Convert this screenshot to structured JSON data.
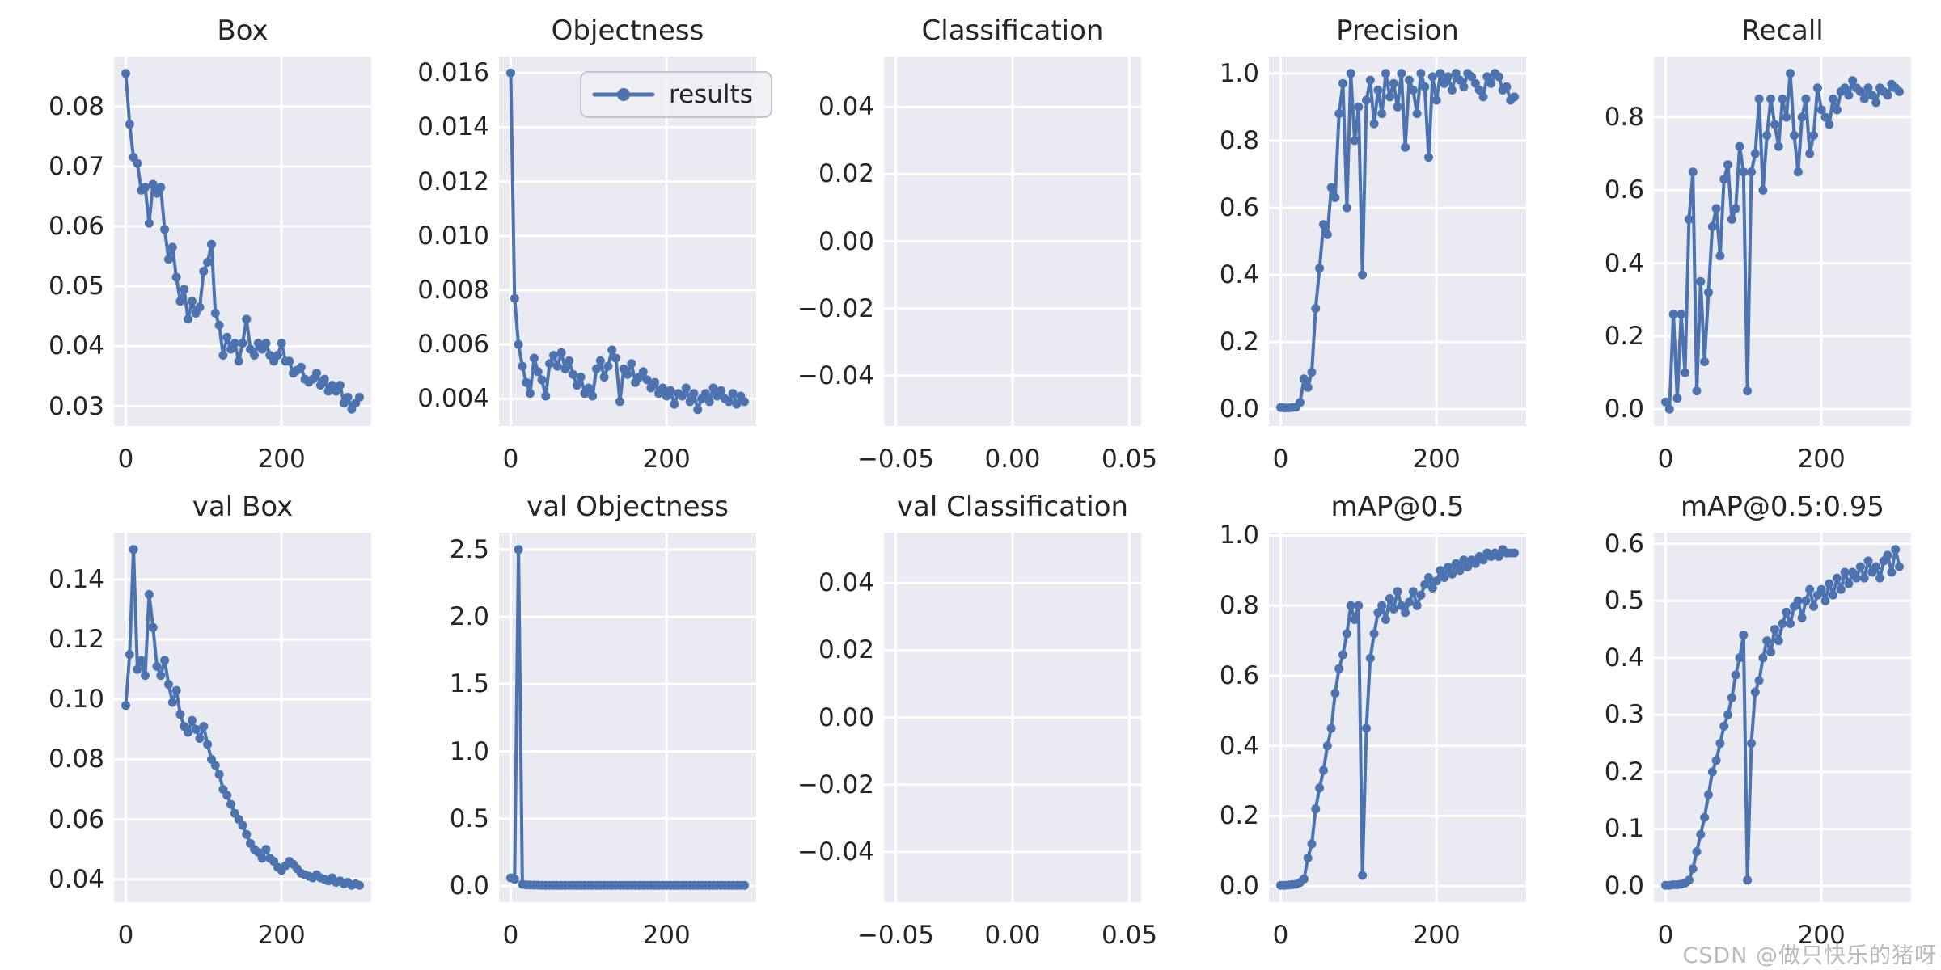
{
  "watermark": {
    "text": "CSDN @做只快乐的猪呀"
  },
  "colors": {
    "line": "#4C72B0",
    "axes_bg": "#EAEAF2",
    "grid": "#FFFFFF",
    "text": "#262626",
    "watermark": "#B9B9C2"
  },
  "legend": {
    "label": "results"
  },
  "chart_data": [
    {
      "id": "box",
      "type": "line",
      "title": "Box",
      "xlabel": "",
      "ylabel": "",
      "grid": true,
      "xlim": [
        -15,
        315
      ],
      "ylim": [
        0.0267,
        0.0883
      ],
      "xticks": [
        [
          0,
          "0"
        ],
        [
          200,
          "200"
        ]
      ],
      "yticks": [
        [
          0.03,
          "0.03"
        ],
        [
          0.04,
          "0.04"
        ],
        [
          0.05,
          "0.05"
        ],
        [
          0.06,
          "0.06"
        ],
        [
          0.07,
          "0.07"
        ],
        [
          0.08,
          "0.08"
        ]
      ],
      "x_step": 5,
      "y": [
        0.0855,
        0.077,
        0.0715,
        0.0705,
        0.066,
        0.0665,
        0.0605,
        0.067,
        0.0655,
        0.0665,
        0.0595,
        0.0545,
        0.0565,
        0.0515,
        0.0475,
        0.0495,
        0.0445,
        0.0475,
        0.0455,
        0.0465,
        0.0525,
        0.054,
        0.057,
        0.0455,
        0.0435,
        0.0385,
        0.0415,
        0.0395,
        0.0405,
        0.0375,
        0.0405,
        0.0445,
        0.0395,
        0.0385,
        0.0405,
        0.0395,
        0.0405,
        0.0385,
        0.0375,
        0.0385,
        0.0405,
        0.0375,
        0.0375,
        0.0355,
        0.036,
        0.0365,
        0.0345,
        0.034,
        0.0345,
        0.0355,
        0.0335,
        0.0345,
        0.0325,
        0.0335,
        0.0325,
        0.0335,
        0.0305,
        0.0315,
        0.0295,
        0.0305,
        0.0315
      ]
    },
    {
      "id": "objectness",
      "type": "line",
      "title": "Objectness",
      "xlabel": "",
      "ylabel": "",
      "grid": true,
      "legend": "results",
      "legend_pos": "upper right",
      "xlim": [
        -15,
        315
      ],
      "ylim": [
        0.003,
        0.0166
      ],
      "xticks": [
        [
          0,
          "0"
        ],
        [
          200,
          "200"
        ]
      ],
      "yticks": [
        [
          0.004,
          "0.004"
        ],
        [
          0.006,
          "0.006"
        ],
        [
          0.008,
          "0.008"
        ],
        [
          0.01,
          "0.010"
        ],
        [
          0.012,
          "0.012"
        ],
        [
          0.014,
          "0.014"
        ],
        [
          0.016,
          "0.016"
        ]
      ],
      "x_step": 5,
      "y": [
        0.016,
        0.0077,
        0.006,
        0.0052,
        0.0046,
        0.0042,
        0.0055,
        0.005,
        0.0047,
        0.0041,
        0.0053,
        0.0056,
        0.0052,
        0.0057,
        0.0051,
        0.0054,
        0.0049,
        0.0045,
        0.0048,
        0.0042,
        0.0044,
        0.0041,
        0.0051,
        0.0054,
        0.0048,
        0.0052,
        0.0058,
        0.0055,
        0.0039,
        0.0051,
        0.0049,
        0.0053,
        0.0046,
        0.0048,
        0.005,
        0.0047,
        0.0044,
        0.0046,
        0.0042,
        0.0044,
        0.0041,
        0.0043,
        0.0038,
        0.0042,
        0.0041,
        0.0044,
        0.0039,
        0.0042,
        0.0036,
        0.004,
        0.0042,
        0.0039,
        0.0044,
        0.0041,
        0.0043,
        0.004,
        0.0039,
        0.0042,
        0.0038,
        0.0041,
        0.0039
      ]
    },
    {
      "id": "classification",
      "type": "line",
      "title": "Classification",
      "xlabel": "",
      "ylabel": "",
      "grid": true,
      "xlim": [
        -0.055,
        0.055
      ],
      "ylim": [
        -0.055,
        0.055
      ],
      "xticks": [
        [
          -0.05,
          "−0.05"
        ],
        [
          0,
          "0.00"
        ],
        [
          0.05,
          "0.05"
        ]
      ],
      "yticks": [
        [
          -0.04,
          "−0.04"
        ],
        [
          -0.02,
          "−0.02"
        ],
        [
          0,
          "0.00"
        ],
        [
          0.02,
          "0.02"
        ],
        [
          0.04,
          "0.04"
        ]
      ],
      "x_step": 5,
      "y": []
    },
    {
      "id": "precision",
      "type": "line",
      "title": "Precision",
      "xlabel": "",
      "ylabel": "",
      "grid": true,
      "xlim": [
        -15,
        315
      ],
      "ylim": [
        -0.05,
        1.05
      ],
      "xticks": [
        [
          0,
          "0"
        ],
        [
          200,
          "200"
        ]
      ],
      "yticks": [
        [
          0,
          "0.0"
        ],
        [
          0.2,
          "0.2"
        ],
        [
          0.4,
          "0.4"
        ],
        [
          0.6,
          "0.6"
        ],
        [
          0.8,
          "0.8"
        ],
        [
          1.0,
          "1.0"
        ]
      ],
      "x_step": 5,
      "y": [
        0.005,
        0.004,
        0.004,
        0.005,
        0.006,
        0.02,
        0.09,
        0.065,
        0.11,
        0.3,
        0.42,
        0.55,
        0.52,
        0.66,
        0.63,
        0.88,
        0.97,
        0.6,
        1.0,
        0.8,
        0.9,
        0.4,
        0.92,
        0.98,
        0.85,
        0.95,
        0.88,
        1.0,
        0.93,
        0.97,
        0.9,
        1.0,
        0.78,
        0.98,
        0.95,
        0.88,
        1.0,
        0.96,
        0.75,
        0.99,
        0.92,
        1.0,
        0.97,
        0.99,
        0.95,
        1.0,
        0.98,
        0.96,
        1.0,
        0.99,
        0.97,
        0.95,
        0.93,
        0.99,
        0.97,
        1.0,
        0.99,
        0.95,
        0.96,
        0.92,
        0.93
      ]
    },
    {
      "id": "recall",
      "type": "line",
      "title": "Recall",
      "xlabel": "",
      "ylabel": "",
      "grid": true,
      "xlim": [
        -15,
        315
      ],
      "ylim": [
        -0.046,
        0.966
      ],
      "xticks": [
        [
          0,
          "0"
        ],
        [
          200,
          "200"
        ]
      ],
      "yticks": [
        [
          0,
          "0.0"
        ],
        [
          0.2,
          "0.2"
        ],
        [
          0.4,
          "0.4"
        ],
        [
          0.6,
          "0.6"
        ],
        [
          0.8,
          "0.8"
        ]
      ],
      "x_step": 5,
      "y": [
        0.02,
        0.0,
        0.26,
        0.03,
        0.26,
        0.1,
        0.52,
        0.65,
        0.05,
        0.35,
        0.13,
        0.32,
        0.5,
        0.55,
        0.42,
        0.63,
        0.67,
        0.52,
        0.55,
        0.72,
        0.65,
        0.05,
        0.65,
        0.7,
        0.85,
        0.6,
        0.75,
        0.85,
        0.78,
        0.72,
        0.85,
        0.8,
        0.92,
        0.75,
        0.65,
        0.8,
        0.85,
        0.7,
        0.75,
        0.88,
        0.82,
        0.8,
        0.78,
        0.85,
        0.82,
        0.87,
        0.88,
        0.86,
        0.9,
        0.88,
        0.87,
        0.85,
        0.88,
        0.86,
        0.84,
        0.88,
        0.87,
        0.86,
        0.89,
        0.88,
        0.87
      ]
    },
    {
      "id": "val-box",
      "type": "line",
      "title": "val Box",
      "xlabel": "",
      "ylabel": "",
      "grid": true,
      "xlim": [
        -15,
        315
      ],
      "ylim": [
        0.0324,
        0.1556
      ],
      "xticks": [
        [
          0,
          "0"
        ],
        [
          200,
          "200"
        ]
      ],
      "yticks": [
        [
          0.04,
          "0.04"
        ],
        [
          0.06,
          "0.06"
        ],
        [
          0.08,
          "0.08"
        ],
        [
          0.1,
          "0.10"
        ],
        [
          0.12,
          "0.12"
        ],
        [
          0.14,
          "0.14"
        ]
      ],
      "x_step": 5,
      "y": [
        0.098,
        0.115,
        0.15,
        0.11,
        0.113,
        0.108,
        0.135,
        0.124,
        0.111,
        0.108,
        0.113,
        0.105,
        0.099,
        0.103,
        0.095,
        0.091,
        0.089,
        0.093,
        0.09,
        0.087,
        0.091,
        0.085,
        0.08,
        0.078,
        0.075,
        0.07,
        0.068,
        0.065,
        0.062,
        0.06,
        0.058,
        0.055,
        0.052,
        0.05,
        0.049,
        0.047,
        0.05,
        0.047,
        0.046,
        0.044,
        0.043,
        0.0445,
        0.046,
        0.045,
        0.0435,
        0.042,
        0.0415,
        0.041,
        0.0405,
        0.0415,
        0.0405,
        0.04,
        0.0395,
        0.0405,
        0.039,
        0.0395,
        0.0385,
        0.039,
        0.038,
        0.0385,
        0.038
      ]
    },
    {
      "id": "val-objectness",
      "type": "line",
      "title": "val Objectness",
      "xlabel": "",
      "ylabel": "",
      "grid": true,
      "xlim": [
        -15,
        315
      ],
      "ylim": [
        -0.12,
        2.625
      ],
      "xticks": [
        [
          0,
          "0"
        ],
        [
          200,
          "200"
        ]
      ],
      "yticks": [
        [
          0,
          "0.0"
        ],
        [
          0.5,
          "0.5"
        ],
        [
          1.0,
          "1.0"
        ],
        [
          1.5,
          "1.5"
        ],
        [
          2.0,
          "2.0"
        ],
        [
          2.5,
          "2.5"
        ]
      ],
      "x_step": 5,
      "y": [
        0.06,
        0.05,
        2.5,
        0.012,
        0.008,
        0.007,
        0.006,
        0.006,
        0.005,
        0.005,
        0.005,
        0.005,
        0.005,
        0.005,
        0.005,
        0.005,
        0.005,
        0.005,
        0.005,
        0.005,
        0.005,
        0.005,
        0.005,
        0.005,
        0.005,
        0.005,
        0.005,
        0.005,
        0.005,
        0.005,
        0.005,
        0.005,
        0.005,
        0.005,
        0.005,
        0.005,
        0.005,
        0.005,
        0.005,
        0.005,
        0.005,
        0.005,
        0.005,
        0.005,
        0.005,
        0.005,
        0.005,
        0.005,
        0.005,
        0.005,
        0.005,
        0.005,
        0.005,
        0.005,
        0.005,
        0.005,
        0.005,
        0.005,
        0.005,
        0.005,
        0.005
      ]
    },
    {
      "id": "val-classification",
      "type": "line",
      "title": "val Classification",
      "xlabel": "",
      "ylabel": "",
      "grid": true,
      "xlim": [
        -0.055,
        0.055
      ],
      "ylim": [
        -0.055,
        0.055
      ],
      "xticks": [
        [
          -0.05,
          "−0.05"
        ],
        [
          0,
          "0.00"
        ],
        [
          0.05,
          "0.05"
        ]
      ],
      "yticks": [
        [
          -0.04,
          "−0.04"
        ],
        [
          -0.02,
          "−0.02"
        ],
        [
          0,
          "0.00"
        ],
        [
          0.02,
          "0.02"
        ],
        [
          0.04,
          "0.04"
        ]
      ],
      "x_step": 5,
      "y": []
    },
    {
      "id": "map05",
      "type": "line",
      "title": "mAP@0.5",
      "xlabel": "",
      "ylabel": "",
      "grid": true,
      "xlim": [
        -15,
        315
      ],
      "ylim": [
        -0.046,
        1.008
      ],
      "xticks": [
        [
          0,
          "0"
        ],
        [
          200,
          "200"
        ]
      ],
      "yticks": [
        [
          0,
          "0.0"
        ],
        [
          0.2,
          "0.2"
        ],
        [
          0.4,
          "0.4"
        ],
        [
          0.6,
          "0.6"
        ],
        [
          0.8,
          "0.8"
        ],
        [
          1.0,
          "1.0"
        ]
      ],
      "x_step": 5,
      "y": [
        0.002,
        0.002,
        0.003,
        0.004,
        0.005,
        0.01,
        0.02,
        0.08,
        0.12,
        0.22,
        0.28,
        0.33,
        0.4,
        0.45,
        0.55,
        0.62,
        0.66,
        0.72,
        0.8,
        0.76,
        0.8,
        0.03,
        0.45,
        0.65,
        0.72,
        0.78,
        0.8,
        0.76,
        0.82,
        0.79,
        0.84,
        0.8,
        0.78,
        0.81,
        0.84,
        0.8,
        0.83,
        0.86,
        0.88,
        0.85,
        0.87,
        0.9,
        0.88,
        0.91,
        0.89,
        0.92,
        0.9,
        0.93,
        0.91,
        0.93,
        0.92,
        0.94,
        0.93,
        0.95,
        0.94,
        0.95,
        0.94,
        0.96,
        0.95,
        0.95,
        0.95
      ]
    },
    {
      "id": "map05095",
      "type": "line",
      "title": "mAP@0.5:0.95",
      "xlabel": "",
      "ylabel": "",
      "grid": true,
      "xlim": [
        -15,
        315
      ],
      "ylim": [
        -0.0285,
        0.6195
      ],
      "xticks": [
        [
          0,
          "0"
        ],
        [
          200,
          "200"
        ]
      ],
      "yticks": [
        [
          0,
          "0.0"
        ],
        [
          0.1,
          "0.1"
        ],
        [
          0.2,
          "0.2"
        ],
        [
          0.3,
          "0.3"
        ],
        [
          0.4,
          "0.4"
        ],
        [
          0.5,
          "0.5"
        ],
        [
          0.6,
          "0.6"
        ]
      ],
      "x_step": 5,
      "y": [
        0.001,
        0.001,
        0.002,
        0.002,
        0.003,
        0.005,
        0.01,
        0.03,
        0.06,
        0.09,
        0.12,
        0.16,
        0.2,
        0.22,
        0.25,
        0.28,
        0.3,
        0.33,
        0.37,
        0.4,
        0.44,
        0.01,
        0.25,
        0.34,
        0.36,
        0.4,
        0.43,
        0.41,
        0.45,
        0.43,
        0.46,
        0.48,
        0.46,
        0.49,
        0.5,
        0.47,
        0.5,
        0.52,
        0.49,
        0.51,
        0.52,
        0.5,
        0.53,
        0.51,
        0.54,
        0.52,
        0.55,
        0.53,
        0.55,
        0.54,
        0.56,
        0.54,
        0.57,
        0.55,
        0.56,
        0.54,
        0.57,
        0.58,
        0.55,
        0.59,
        0.56
      ]
    }
  ]
}
